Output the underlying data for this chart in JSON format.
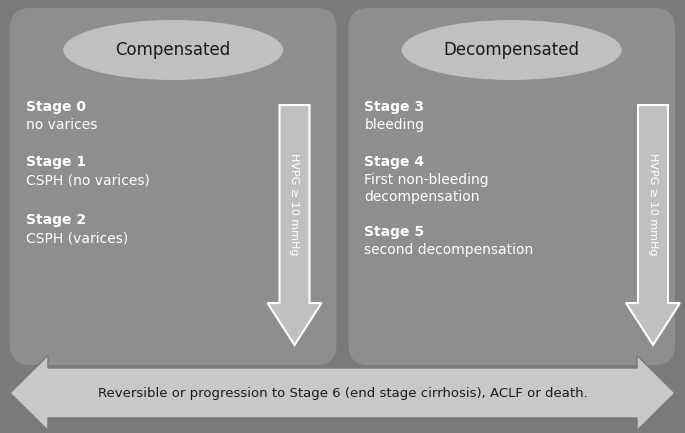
{
  "bg_color": "#7a7a7a",
  "panel_color": "#8e8e8e",
  "oval_color": "#c0c0c0",
  "arrow_color": "#c0c0c0",
  "bottom_arrow_color": "#c8c8c8",
  "text_dark": "#1a1a1a",
  "text_white": "#ffffff",
  "left_panel": {
    "label": "Compensated",
    "stages": [
      {
        "stage": "Stage 0",
        "desc": "no varices"
      },
      {
        "stage": "Stage 1",
        "desc": "CSPH (no varices)"
      },
      {
        "stage": "Stage 2",
        "desc": "CSPH (varices)"
      }
    ],
    "hvpg": "HVPG ≥ 10 mmHg"
  },
  "right_panel": {
    "label": "Decompensated",
    "stages": [
      {
        "stage": "Stage 3",
        "desc": "bleeding"
      },
      {
        "stage": "Stage 4",
        "desc": "First non-bleeding\ndecompensation"
      },
      {
        "stage": "Stage 5",
        "desc": "second decompensation"
      }
    ],
    "hvpg": "HVPG ≥ 10 mmHg"
  },
  "bottom_text": "Reversible or progression to Stage 6 (end stage cirrhosis), ACLF or death.",
  "fig_w": 6.85,
  "fig_h": 4.33,
  "dpi": 100
}
